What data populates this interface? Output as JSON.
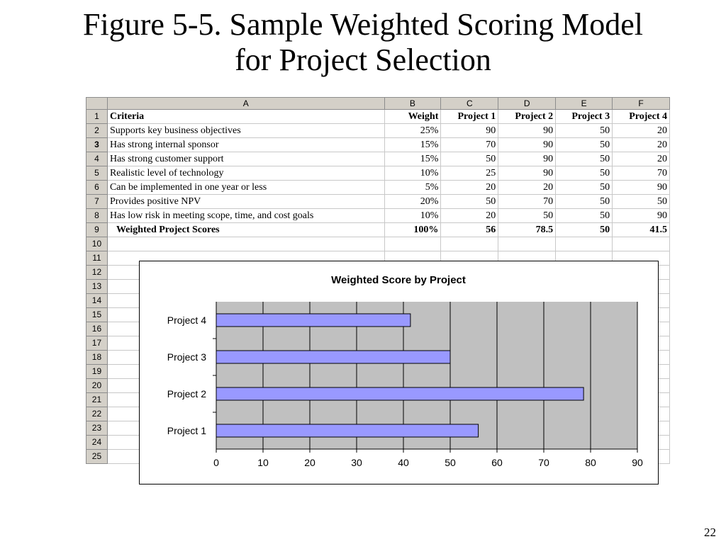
{
  "slide": {
    "title_line1": "Figure 5-5. Sample Weighted Scoring Model",
    "title_line2": "for Project Selection",
    "page_number": "22"
  },
  "spreadsheet": {
    "columns": [
      "A",
      "B",
      "C",
      "D",
      "E",
      "F"
    ],
    "row_numbers": [
      "1",
      "2",
      "3",
      "4",
      "5",
      "6",
      "7",
      "8",
      "9",
      "10",
      "11",
      "12",
      "13",
      "14",
      "15",
      "16",
      "17",
      "18",
      "19",
      "20",
      "21",
      "22",
      "23",
      "24",
      "25"
    ],
    "header_row": [
      "Criteria",
      "Weight",
      "Project 1",
      "Project 2",
      "Project 3",
      "Project 4"
    ],
    "rows": [
      [
        "Supports key business objectives",
        "25%",
        "90",
        "90",
        "50",
        "20"
      ],
      [
        "Has strong internal sponsor",
        "15%",
        "70",
        "90",
        "50",
        "20"
      ],
      [
        "Has strong customer support",
        "15%",
        "50",
        "90",
        "50",
        "20"
      ],
      [
        "Realistic level of technology",
        "10%",
        "25",
        "90",
        "50",
        "70"
      ],
      [
        "Can be implemented in one year or less",
        "5%",
        "20",
        "20",
        "50",
        "90"
      ],
      [
        "Provides positive NPV",
        "20%",
        "50",
        "70",
        "50",
        "50"
      ],
      [
        "Has low risk in meeting scope, time, and cost goals",
        "10%",
        "20",
        "50",
        "50",
        "90"
      ]
    ],
    "total_row": [
      "Weighted Project Scores",
      "100%",
      "56",
      "78.5",
      "50",
      "41.5"
    ]
  },
  "chart_data": {
    "type": "bar",
    "orientation": "horizontal",
    "title": "Weighted Score by Project",
    "categories": [
      "Project 4",
      "Project 3",
      "Project 2",
      "Project 1"
    ],
    "values": [
      41.5,
      50,
      78.5,
      56
    ],
    "xlim": [
      0,
      90
    ],
    "xticks": [
      "0",
      "10",
      "20",
      "30",
      "40",
      "50",
      "60",
      "70",
      "80",
      "90"
    ],
    "grid": true,
    "legend": "none",
    "colors": {
      "bar": "#9999ff",
      "plot_background": "#c0c0c0"
    }
  }
}
